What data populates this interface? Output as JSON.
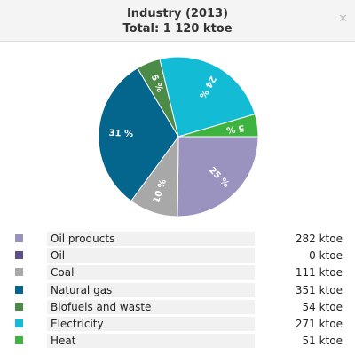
{
  "header": {
    "title": "Industry (2013)",
    "subtitle": "Total: 1 120 ktoe",
    "close_icon": "close-icon"
  },
  "chart_data": {
    "type": "pie",
    "title": "Industry (2013)",
    "subtitle": "Total: 1 120 ktoe",
    "unit": "ktoe",
    "slices": [
      {
        "name": "Oil products",
        "value": 282,
        "display": "282 ktoe",
        "percent_label": "25 %",
        "color": "#9b93bf"
      },
      {
        "name": "Oil",
        "value": 0,
        "display": "0 ktoe",
        "percent_label": "",
        "color": "#5e4f8c"
      },
      {
        "name": "Coal",
        "value": 111,
        "display": "111 ktoe",
        "percent_label": "10 %",
        "color": "#a8a8a8"
      },
      {
        "name": "Natural gas",
        "value": 351,
        "display": "351 ktoe",
        "percent_label": "31 %",
        "color": "#05668d"
      },
      {
        "name": "Biofuels and waste",
        "value": 54,
        "display": "54 ktoe",
        "percent_label": "5 %",
        "color": "#4c8a47"
      },
      {
        "name": "Electricity",
        "value": 271,
        "display": "271 ktoe",
        "percent_label": "24 %",
        "color": "#13bcd4"
      },
      {
        "name": "Heat",
        "value": 51,
        "display": "51 ktoe",
        "percent_label": "5 %",
        "color": "#3fb33f"
      }
    ]
  }
}
